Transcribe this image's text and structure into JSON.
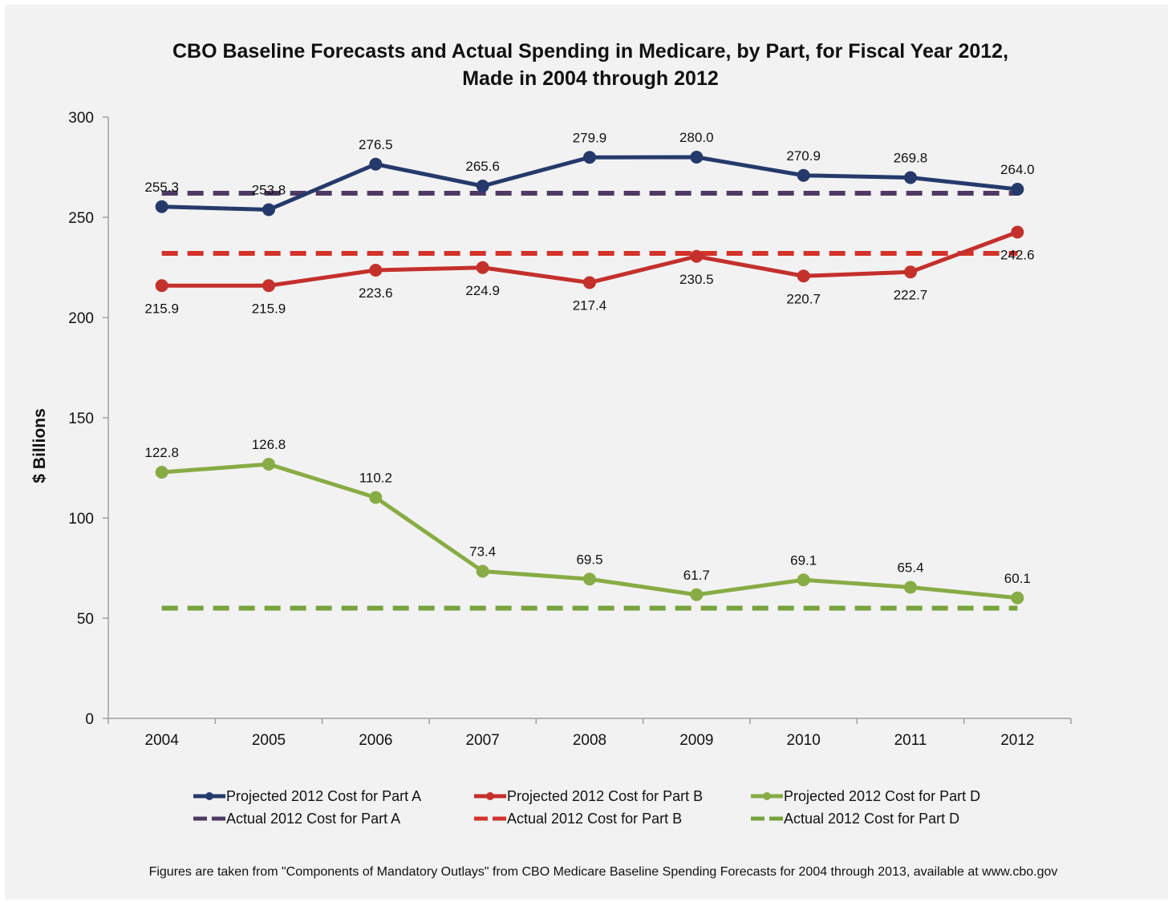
{
  "colors": {
    "part_a": "#253a6b",
    "part_b": "#c4302c",
    "part_d": "#88ac45",
    "actual_a": "#4e3a64",
    "actual_b": "#d3332a",
    "actual_d": "#77a23c"
  },
  "chart_data": {
    "type": "line",
    "title_lines": [
      "CBO Baseline Forecasts and Actual Spending in Medicare, by Part, for Fiscal Year 2012,",
      "Made in 2004 through 2012"
    ],
    "xlabel": "",
    "ylabel": "$ Billions",
    "ylim": [
      0,
      300
    ],
    "yticks": [
      0,
      50,
      100,
      150,
      200,
      250,
      300
    ],
    "categories": [
      "2004",
      "2005",
      "2006",
      "2007",
      "2008",
      "2009",
      "2010",
      "2011",
      "2012"
    ],
    "grid": false,
    "legend_placement": "bottom",
    "series": [
      {
        "name": "Projected 2012 Cost for Part A",
        "style": "solid",
        "color_key": "part_a",
        "label_pos": "above",
        "values": [
          255.3,
          253.8,
          276.5,
          265.6,
          279.9,
          280.0,
          270.9,
          269.8,
          264.0
        ],
        "labels": [
          "255.3",
          "253.8",
          "276.5",
          "265.6",
          "279.9",
          "280.0",
          "270.9",
          "269.8",
          "264.0"
        ]
      },
      {
        "name": "Projected 2012 Cost for Part B",
        "style": "solid",
        "color_key": "part_b",
        "label_pos": "below",
        "values": [
          215.9,
          215.9,
          223.6,
          224.9,
          217.4,
          230.5,
          220.7,
          222.7,
          242.6
        ],
        "labels": [
          "215.9",
          "215.9",
          "223.6",
          "224.9",
          "217.4",
          "230.5",
          "220.7",
          "222.7",
          "242.6"
        ]
      },
      {
        "name": "Projected 2012 Cost for Part D",
        "style": "solid",
        "color_key": "part_d",
        "label_pos": "above",
        "values": [
          122.8,
          126.8,
          110.2,
          73.4,
          69.5,
          61.7,
          69.1,
          65.4,
          60.1
        ],
        "labels": [
          "122.8",
          "126.8",
          "110.2",
          "73.4",
          "69.5",
          "61.7",
          "69.1",
          "65.4",
          "60.1"
        ]
      },
      {
        "name": "Actual 2012 Cost for Part A",
        "style": "dashed",
        "color_key": "actual_a",
        "value": 262
      },
      {
        "name": "Actual 2012 Cost for Part B",
        "style": "dashed",
        "color_key": "actual_b",
        "value": 232
      },
      {
        "name": "Actual 2012 Cost for Part D",
        "style": "dashed",
        "color_key": "actual_d",
        "value": 55
      }
    ]
  },
  "footnote": "Figures are taken from \"Components of Mandatory Outlays\" from CBO Medicare Baseline Spending Forecasts for 2004 through 2013, available at www.cbo.gov"
}
